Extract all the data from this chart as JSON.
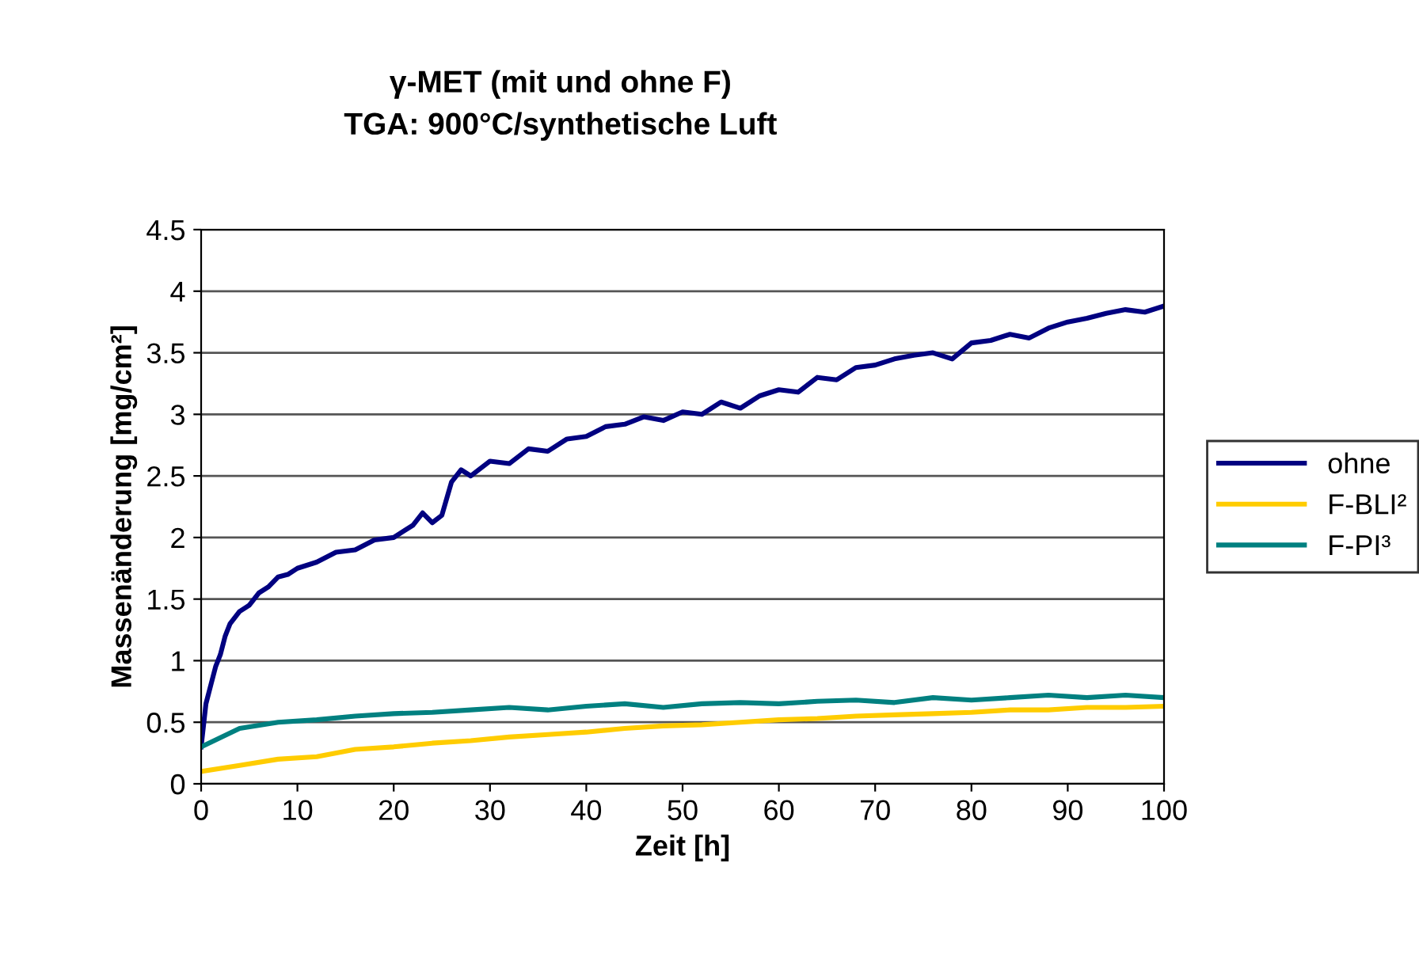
{
  "chart_data": {
    "type": "line",
    "title": "γ-MET (mit und ohne F)\nTGA: 900°C/synthetische Luft",
    "xlabel": "Zeit [h]",
    "ylabel": "Massenänderung [mg/cm²]",
    "xlim": [
      0,
      100
    ],
    "xticks": [
      0,
      10,
      20,
      30,
      40,
      50,
      60,
      70,
      80,
      90,
      100
    ],
    "ylim": [
      0,
      4.5
    ],
    "yticks": [
      0,
      0.5,
      1,
      1.5,
      2,
      2.5,
      3,
      3.5,
      4,
      4.5
    ],
    "grid": "y",
    "legend": "right",
    "line_style": "solid",
    "series": [
      {
        "name": "ohne",
        "color": "#000080",
        "x": [
          0,
          0.5,
          1,
          1.5,
          2,
          2.5,
          3,
          4,
          5,
          6,
          7,
          8,
          9,
          10,
          12,
          14,
          16,
          18,
          20,
          22,
          23,
          24,
          25,
          26,
          27,
          28,
          30,
          32,
          34,
          36,
          38,
          40,
          42,
          44,
          46,
          48,
          50,
          52,
          54,
          56,
          58,
          60,
          62,
          64,
          66,
          68,
          70,
          72,
          74,
          76,
          78,
          80,
          82,
          84,
          86,
          88,
          90,
          92,
          94,
          96,
          98,
          100
        ],
        "values": [
          0.3,
          0.65,
          0.8,
          0.95,
          1.05,
          1.2,
          1.3,
          1.4,
          1.45,
          1.55,
          1.6,
          1.68,
          1.7,
          1.75,
          1.8,
          1.88,
          1.9,
          1.98,
          2.0,
          2.1,
          2.2,
          2.12,
          2.18,
          2.45,
          2.55,
          2.5,
          2.62,
          2.6,
          2.72,
          2.7,
          2.8,
          2.82,
          2.9,
          2.92,
          2.98,
          2.95,
          3.02,
          3.0,
          3.1,
          3.05,
          3.15,
          3.2,
          3.18,
          3.3,
          3.28,
          3.38,
          3.4,
          3.45,
          3.48,
          3.5,
          3.45,
          3.58,
          3.6,
          3.65,
          3.62,
          3.7,
          3.75,
          3.78,
          3.82,
          3.85,
          3.83,
          3.88
        ]
      },
      {
        "name": "F-BLI²",
        "color": "#ffcc00",
        "x": [
          0,
          4,
          8,
          12,
          16,
          20,
          24,
          28,
          32,
          36,
          40,
          44,
          48,
          52,
          56,
          60,
          64,
          68,
          72,
          76,
          80,
          84,
          88,
          92,
          96,
          100
        ],
        "values": [
          0.1,
          0.15,
          0.2,
          0.22,
          0.28,
          0.3,
          0.33,
          0.35,
          0.38,
          0.4,
          0.42,
          0.45,
          0.47,
          0.48,
          0.5,
          0.52,
          0.53,
          0.55,
          0.56,
          0.57,
          0.58,
          0.6,
          0.6,
          0.62,
          0.62,
          0.63
        ]
      },
      {
        "name": "F-PI³",
        "color": "#008080",
        "x": [
          0,
          4,
          8,
          12,
          16,
          20,
          24,
          28,
          32,
          36,
          40,
          44,
          48,
          52,
          56,
          60,
          64,
          68,
          72,
          76,
          80,
          84,
          88,
          92,
          96,
          100
        ],
        "values": [
          0.3,
          0.45,
          0.5,
          0.52,
          0.55,
          0.57,
          0.58,
          0.6,
          0.62,
          0.6,
          0.63,
          0.65,
          0.62,
          0.65,
          0.66,
          0.65,
          0.67,
          0.68,
          0.66,
          0.7,
          0.68,
          0.7,
          0.72,
          0.7,
          0.72,
          0.7
        ]
      }
    ]
  }
}
